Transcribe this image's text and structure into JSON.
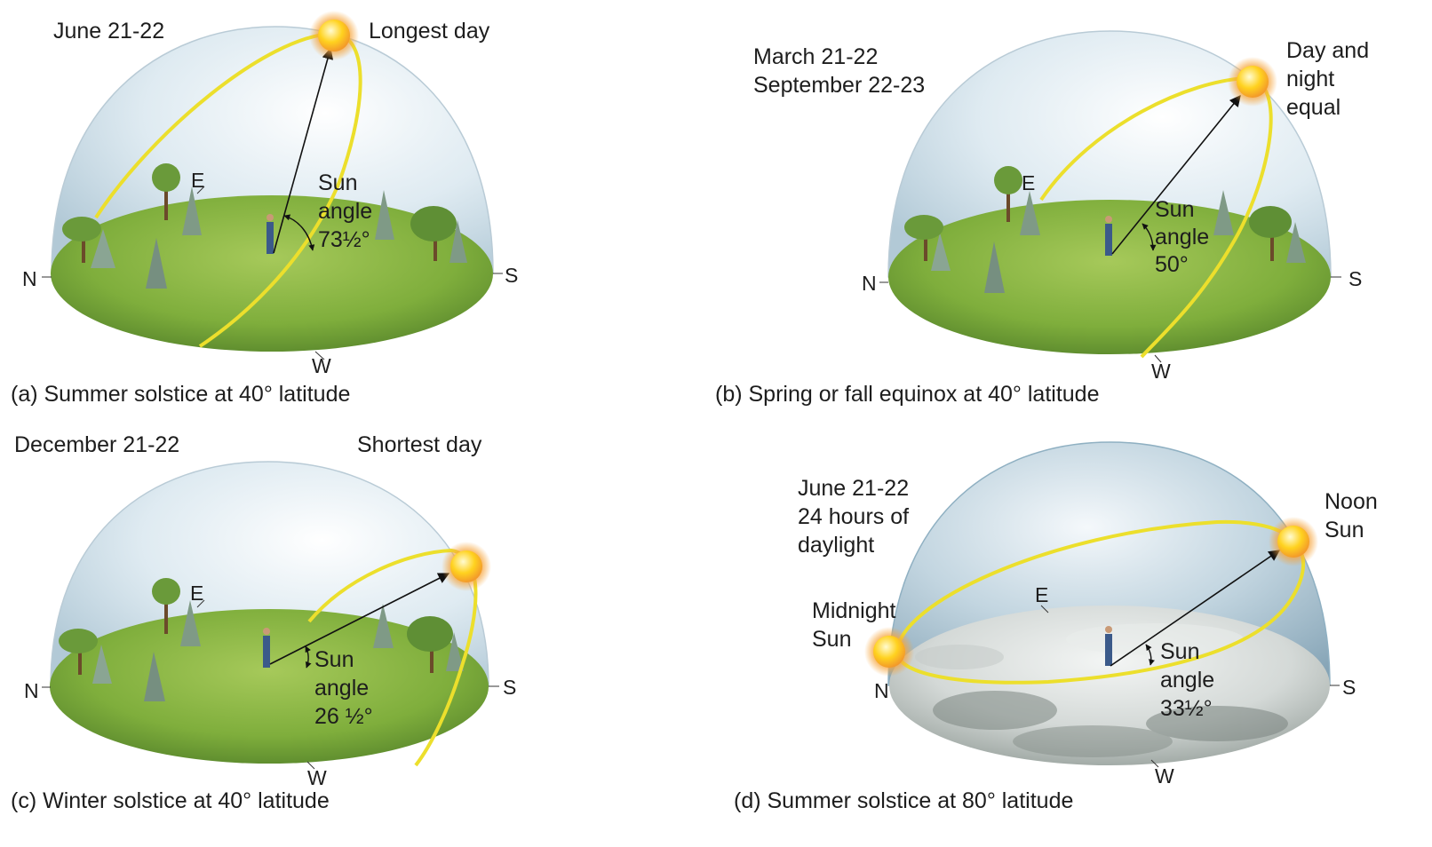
{
  "panels": [
    {
      "id": "a",
      "caption": "(a) Summer solstice at 40° latitude",
      "date_lines": [
        "June 21-22"
      ],
      "note_lines": [
        "Longest day"
      ],
      "angle_lines": [
        "Sun",
        "angle",
        "73½°"
      ],
      "directions": {
        "north": "N",
        "south": "S",
        "east": "E",
        "west": "W"
      },
      "sun_angle_degrees": 73.5,
      "ground": "grass"
    },
    {
      "id": "b",
      "caption": "(b) Spring or fall equinox at 40° latitude",
      "date_lines": [
        "March 21-22",
        "September 22-23"
      ],
      "note_lines": [
        "Day and",
        "night",
        "equal"
      ],
      "angle_lines": [
        "Sun",
        "angle",
        "50°"
      ],
      "directions": {
        "north": "N",
        "south": "S",
        "east": "E",
        "west": "W"
      },
      "sun_angle_degrees": 50,
      "ground": "grass"
    },
    {
      "id": "c",
      "caption": "(c) Winter solstice at 40° latitude",
      "date_lines": [
        "December 21-22"
      ],
      "note_lines": [
        "Shortest day"
      ],
      "angle_lines": [
        "Sun",
        "angle",
        "26 ½°"
      ],
      "directions": {
        "north": "N",
        "south": "S",
        "east": "E",
        "west": "W"
      },
      "sun_angle_degrees": 26.5,
      "ground": "grass"
    },
    {
      "id": "d",
      "caption": "(d) Summer solstice at 80° latitude",
      "date_lines": [
        "June 21-22",
        "24 hours of",
        "daylight"
      ],
      "note_lines": [
        "Noon",
        "Sun"
      ],
      "extra_lines": [
        "Midnight",
        "Sun"
      ],
      "angle_lines": [
        "Sun",
        "angle",
        "33½°"
      ],
      "directions": {
        "north": "N",
        "south": "S",
        "east": "E",
        "west": "W"
      },
      "sun_angle_degrees": 33.5,
      "ground": "snow"
    }
  ],
  "colors": {
    "sun_path": "#ecdf2c",
    "sun": "#ffd21f",
    "sun_glow": "#f39a2a",
    "grass": "#7fae3c",
    "snow": "#dfe3e2",
    "dome": "#cfe0ea",
    "arrow": "#111111"
  }
}
